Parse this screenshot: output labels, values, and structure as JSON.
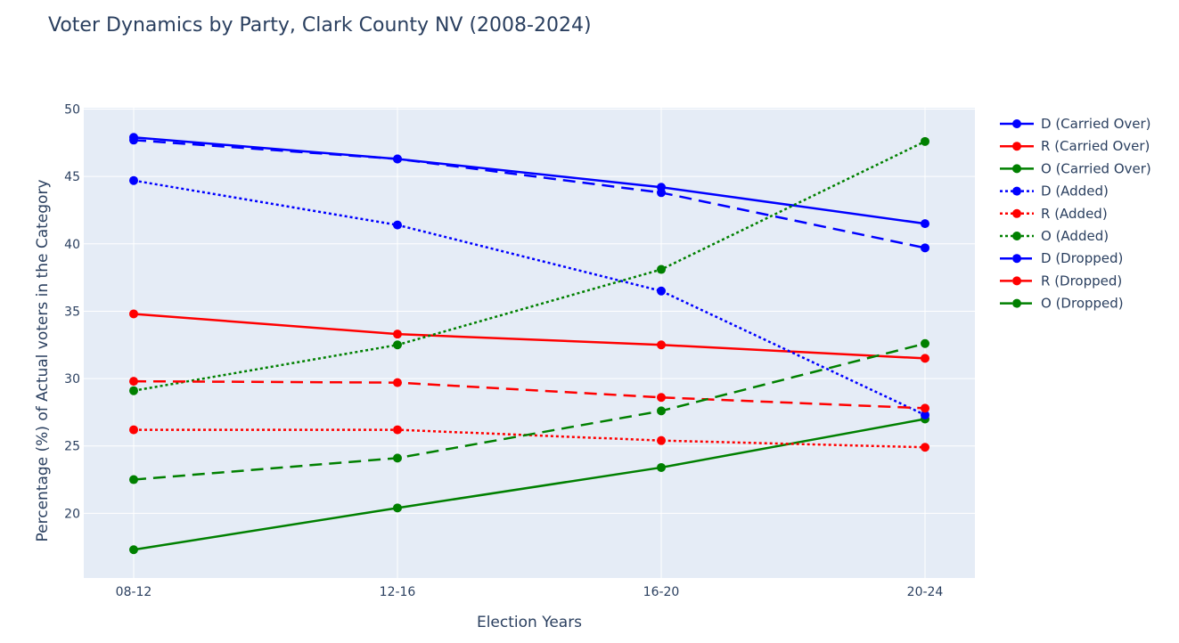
{
  "chart_data": {
    "type": "line",
    "title": "Voter Dynamics by Party, Clark County NV (2008-2024)",
    "xlabel": "Election Years",
    "ylabel": "Percentage (%) of Actual voters in the Category",
    "categories": [
      "08-12",
      "12-16",
      "16-20",
      "20-24"
    ],
    "ylim": [
      15.2,
      50.1
    ],
    "yticks": [
      20,
      25,
      30,
      35,
      40,
      45,
      50
    ],
    "grid": true,
    "legend_position": "right",
    "plot_background": "#e5ecf6",
    "series": [
      {
        "name": "D (Carried Over)",
        "color": "#0000ff",
        "dash": "solid",
        "values": [
          47.9,
          46.3,
          44.2,
          41.5
        ]
      },
      {
        "name": "R (Carried Over)",
        "color": "#ff0000",
        "dash": "solid",
        "values": [
          34.8,
          33.3,
          32.5,
          31.5
        ]
      },
      {
        "name": "O (Carried Over)",
        "color": "#008000",
        "dash": "solid",
        "values": [
          17.3,
          20.4,
          23.4,
          27.0
        ]
      },
      {
        "name": "D (Added)",
        "color": "#0000ff",
        "dash": "dot",
        "values": [
          44.7,
          41.4,
          36.5,
          27.3
        ]
      },
      {
        "name": "R (Added)",
        "color": "#ff0000",
        "dash": "dot",
        "values": [
          26.2,
          26.2,
          25.4,
          24.9
        ]
      },
      {
        "name": "O (Added)",
        "color": "#008000",
        "dash": "dot",
        "values": [
          29.1,
          32.5,
          38.1,
          47.6
        ]
      },
      {
        "name": "D (Dropped)",
        "color": "#0000ff",
        "dash": "dash",
        "values": [
          47.7,
          46.3,
          43.8,
          39.7
        ]
      },
      {
        "name": "R (Dropped)",
        "color": "#ff0000",
        "dash": "dash",
        "values": [
          29.8,
          29.7,
          28.6,
          27.8
        ]
      },
      {
        "name": "O (Dropped)",
        "color": "#008000",
        "dash": "dash",
        "values": [
          22.5,
          24.1,
          27.6,
          32.6
        ]
      }
    ]
  }
}
